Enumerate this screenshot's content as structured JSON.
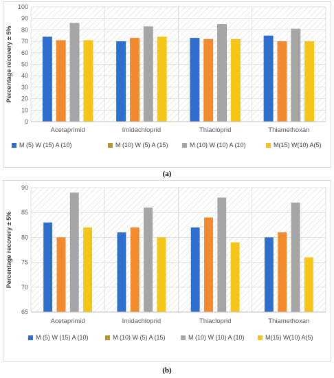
{
  "captions": [
    "(a)",
    "(b)"
  ],
  "chart_data": [
    {
      "type": "bar",
      "title": "",
      "xlabel": "",
      "ylabel": "Percentage recovery ± 5%",
      "ylim": [
        0,
        100
      ],
      "yticks": [
        0,
        10,
        20,
        30,
        40,
        50,
        60,
        70,
        80,
        90,
        100
      ],
      "grid": true,
      "legend_position": "bottom",
      "categories": [
        "Acetaprimid",
        "Imidachloprid",
        "Thiacloprid",
        "Thiamethoxan"
      ],
      "series": [
        {
          "name": "M (5) W (15) A (10)",
          "color": "#2e6fce",
          "values": [
            74,
            70,
            73,
            75
          ]
        },
        {
          "name": "M (10) W (5) A (15)",
          "color": "#f28a2e",
          "values": [
            71,
            73,
            72,
            70
          ]
        },
        {
          "name": "M (10) W (10) A (10)",
          "color": "#a5a5a5",
          "values": [
            86,
            83,
            85,
            81
          ]
        },
        {
          "name": "M(15) W(10) A(5)",
          "color": "#f5c518",
          "values": [
            71,
            74,
            72,
            70
          ]
        }
      ],
      "legend_swatch_colors": [
        "#2e6fce",
        "#b8932a",
        "#a5a5a5",
        "#f5c518"
      ]
    },
    {
      "type": "bar",
      "title": "",
      "xlabel": "",
      "ylabel": "Percentage recovery ± 5%",
      "ylim": [
        65,
        90
      ],
      "yticks": [
        65,
        70,
        75,
        80,
        85,
        90
      ],
      "grid": true,
      "legend_position": "bottom",
      "categories": [
        "Acetaprimid",
        "Imidachloprid",
        "Thiacloprid",
        "Thiamethoxan"
      ],
      "series": [
        {
          "name": "M (5) W (15) A (10)",
          "color": "#2e6fce",
          "values": [
            83,
            81,
            82,
            80
          ]
        },
        {
          "name": "M (10) W (5) A (15)",
          "color": "#f28a2e",
          "values": [
            80,
            82,
            84,
            81
          ]
        },
        {
          "name": "M (10) W (10) A (10)",
          "color": "#a5a5a5",
          "values": [
            89,
            86,
            88,
            87
          ]
        },
        {
          "name": "M(15) W(10) A(5)",
          "color": "#f5c518",
          "values": [
            82,
            80,
            79,
            76
          ]
        }
      ],
      "legend_swatch_colors": [
        "#2e6fce",
        "#b8932a",
        "#a5a5a5",
        "#f5c518"
      ]
    }
  ]
}
